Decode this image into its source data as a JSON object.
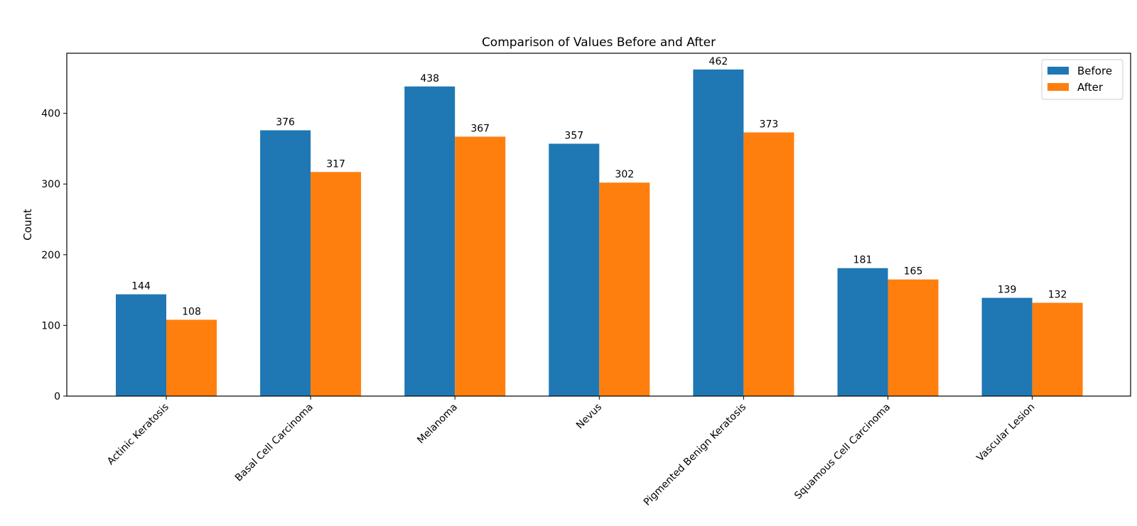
{
  "chart_data": {
    "type": "bar",
    "title": "Comparison of Values Before and After",
    "xlabel": "",
    "ylabel": "Count",
    "ylim": [
      0,
      485
    ],
    "yticks": [
      0,
      100,
      200,
      300,
      400
    ],
    "categories": [
      "Actinic Keratosis",
      "Basal Cell Carcinoma",
      "Melanoma",
      "Nevus",
      "Pigmented Benign Keratosis",
      "Squamous Cell Carcinoma",
      "Vascular Lesion"
    ],
    "series": [
      {
        "name": "Before",
        "color": "#1f77b4",
        "values": [
          144,
          376,
          438,
          357,
          462,
          181,
          139
        ]
      },
      {
        "name": "After",
        "color": "#ff7f0e",
        "values": [
          108,
          317,
          367,
          302,
          373,
          165,
          132
        ]
      }
    ],
    "legend": "top-right",
    "grid": false
  }
}
